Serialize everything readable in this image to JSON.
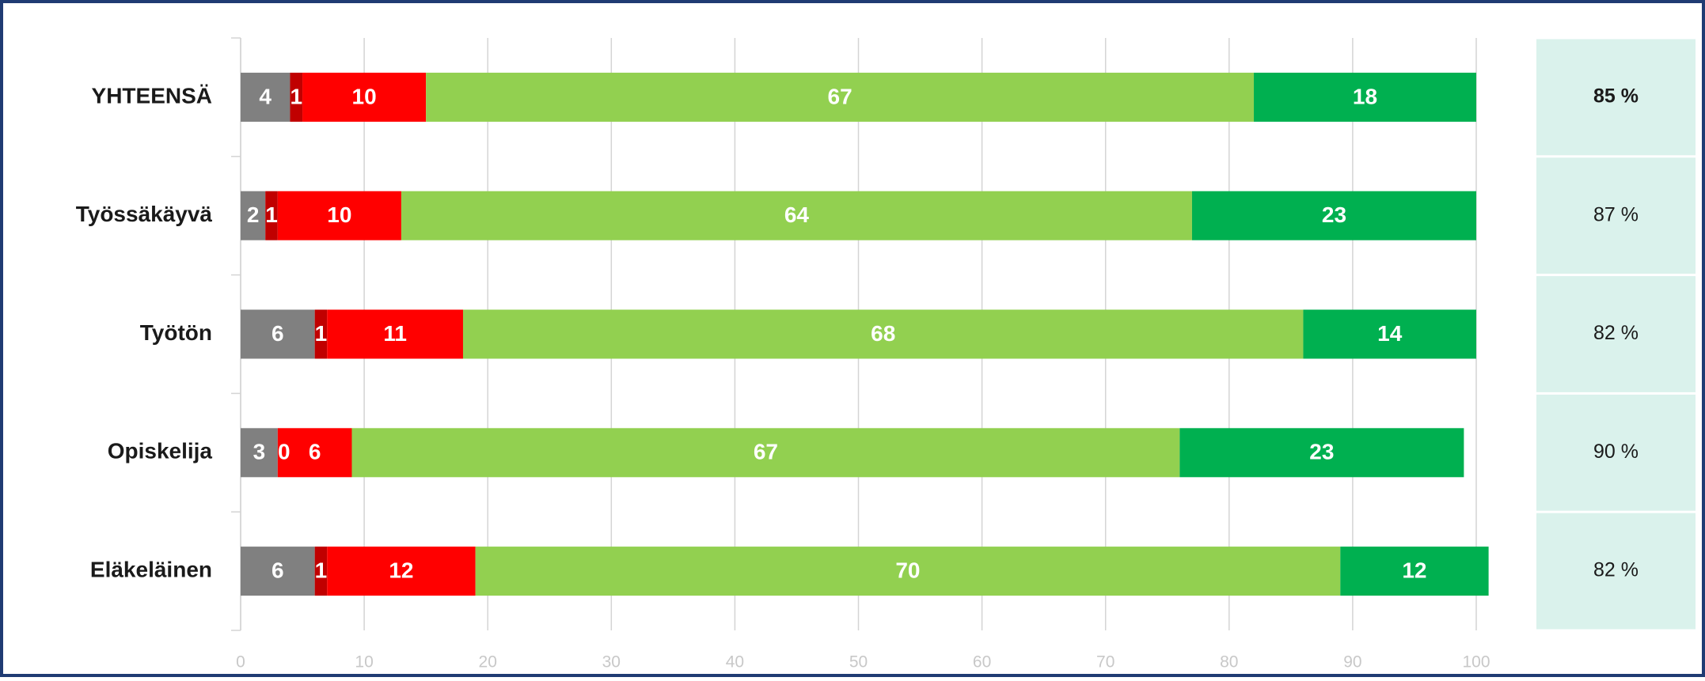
{
  "chart_data": {
    "type": "stacked-barh",
    "categories": [
      "YHTEENSÄ",
      "Työssäkäyvä",
      "Työtön",
      "Opiskelija",
      "Eläkeläinen"
    ],
    "series": [
      {
        "color": "#808080",
        "values": [
          4,
          2,
          6,
          3,
          6
        ]
      },
      {
        "color": "#c00000",
        "values": [
          1,
          1,
          1,
          0,
          1
        ]
      },
      {
        "color": "#ff0000",
        "values": [
          10,
          10,
          11,
          6,
          12
        ]
      },
      {
        "color": "#92d050",
        "values": [
          67,
          64,
          68,
          67,
          70
        ]
      },
      {
        "color": "#00b050",
        "values": [
          18,
          23,
          14,
          23,
          12
        ]
      }
    ],
    "xlim": [
      0,
      100
    ],
    "xticks": [
      0,
      10,
      20,
      30,
      40,
      50,
      60,
      70,
      80,
      90,
      100
    ],
    "grid": true,
    "totals": {
      "values": [
        85,
        87,
        82,
        90,
        82
      ],
      "value_labels": [
        "85 %",
        "87 %",
        "82 %",
        "90 %",
        "82 %"
      ],
      "color": "#daf2ec"
    }
  }
}
